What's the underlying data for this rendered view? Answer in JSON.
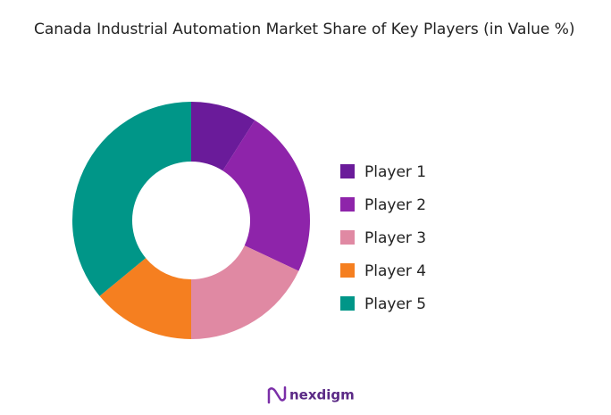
{
  "chart_data": {
    "type": "donut",
    "title": "Canada Industrial Automation Market Share of Key Players (in Value %)",
    "categories": [
      "Player 1",
      "Player 2",
      "Player 3",
      "Player 4",
      "Player 5"
    ],
    "values": [
      9,
      23,
      18,
      14,
      36
    ],
    "colors": [
      "#6a1b9a",
      "#8e24aa",
      "#e089a3",
      "#f57f20",
      "#009688"
    ],
    "legend": "right"
  },
  "branding": "nexdigm"
}
